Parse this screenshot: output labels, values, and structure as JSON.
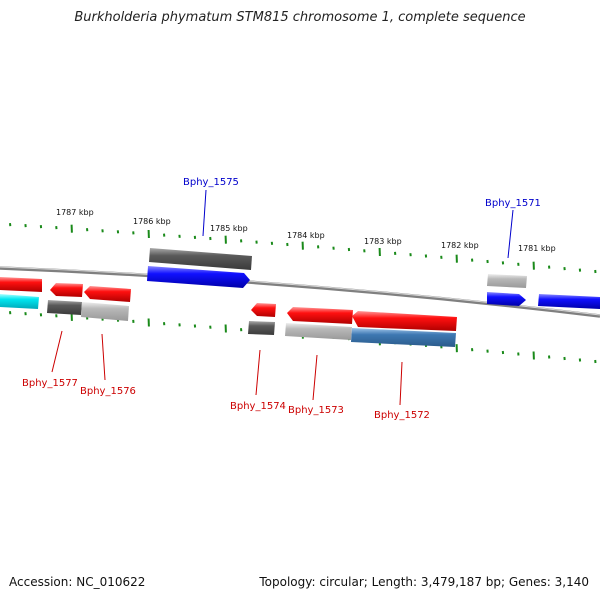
{
  "title": "Burkholderia phymatum STM815 chromosome 1, complete sequence",
  "footer": {
    "accession": "Accession: NC_010622",
    "summary": "Topology: circular; Length: 3,479,187 bp; Genes: 3,140"
  },
  "scale_labels": [
    "1787 kbp",
    "1786 kbp",
    "1785 kbp",
    "1784 kbp",
    "1783 kbp",
    "1782 kbp",
    "1781 kbp"
  ],
  "genes": [
    {
      "id": "g1575",
      "label": "Bphy_1575",
      "strand": "plus"
    },
    {
      "id": "g1571",
      "label": "Bphy_1571",
      "strand": "plus"
    },
    {
      "id": "g1577",
      "label": "Bphy_1577",
      "strand": "minus"
    },
    {
      "id": "g1576",
      "label": "Bphy_1576",
      "strand": "minus"
    },
    {
      "id": "g1574",
      "label": "Bphy_1574",
      "strand": "minus"
    },
    {
      "id": "g1573",
      "label": "Bphy_1573",
      "strand": "minus"
    },
    {
      "id": "g1572",
      "label": "Bphy_1572",
      "strand": "minus"
    }
  ],
  "colors": {
    "plus_label": "#0000cc",
    "minus_label": "#cc0000",
    "tick": "#1a8a1a",
    "backbone": "#7a7a7a",
    "blue_gene": "#0000ee",
    "red_gene": "#ee0000",
    "cyan_gene": "#00e6f0",
    "dark_gray_gene": "#5e5e5e",
    "light_gray_gene": "#b8b8b8",
    "steel_gene": "#3e78b2"
  }
}
